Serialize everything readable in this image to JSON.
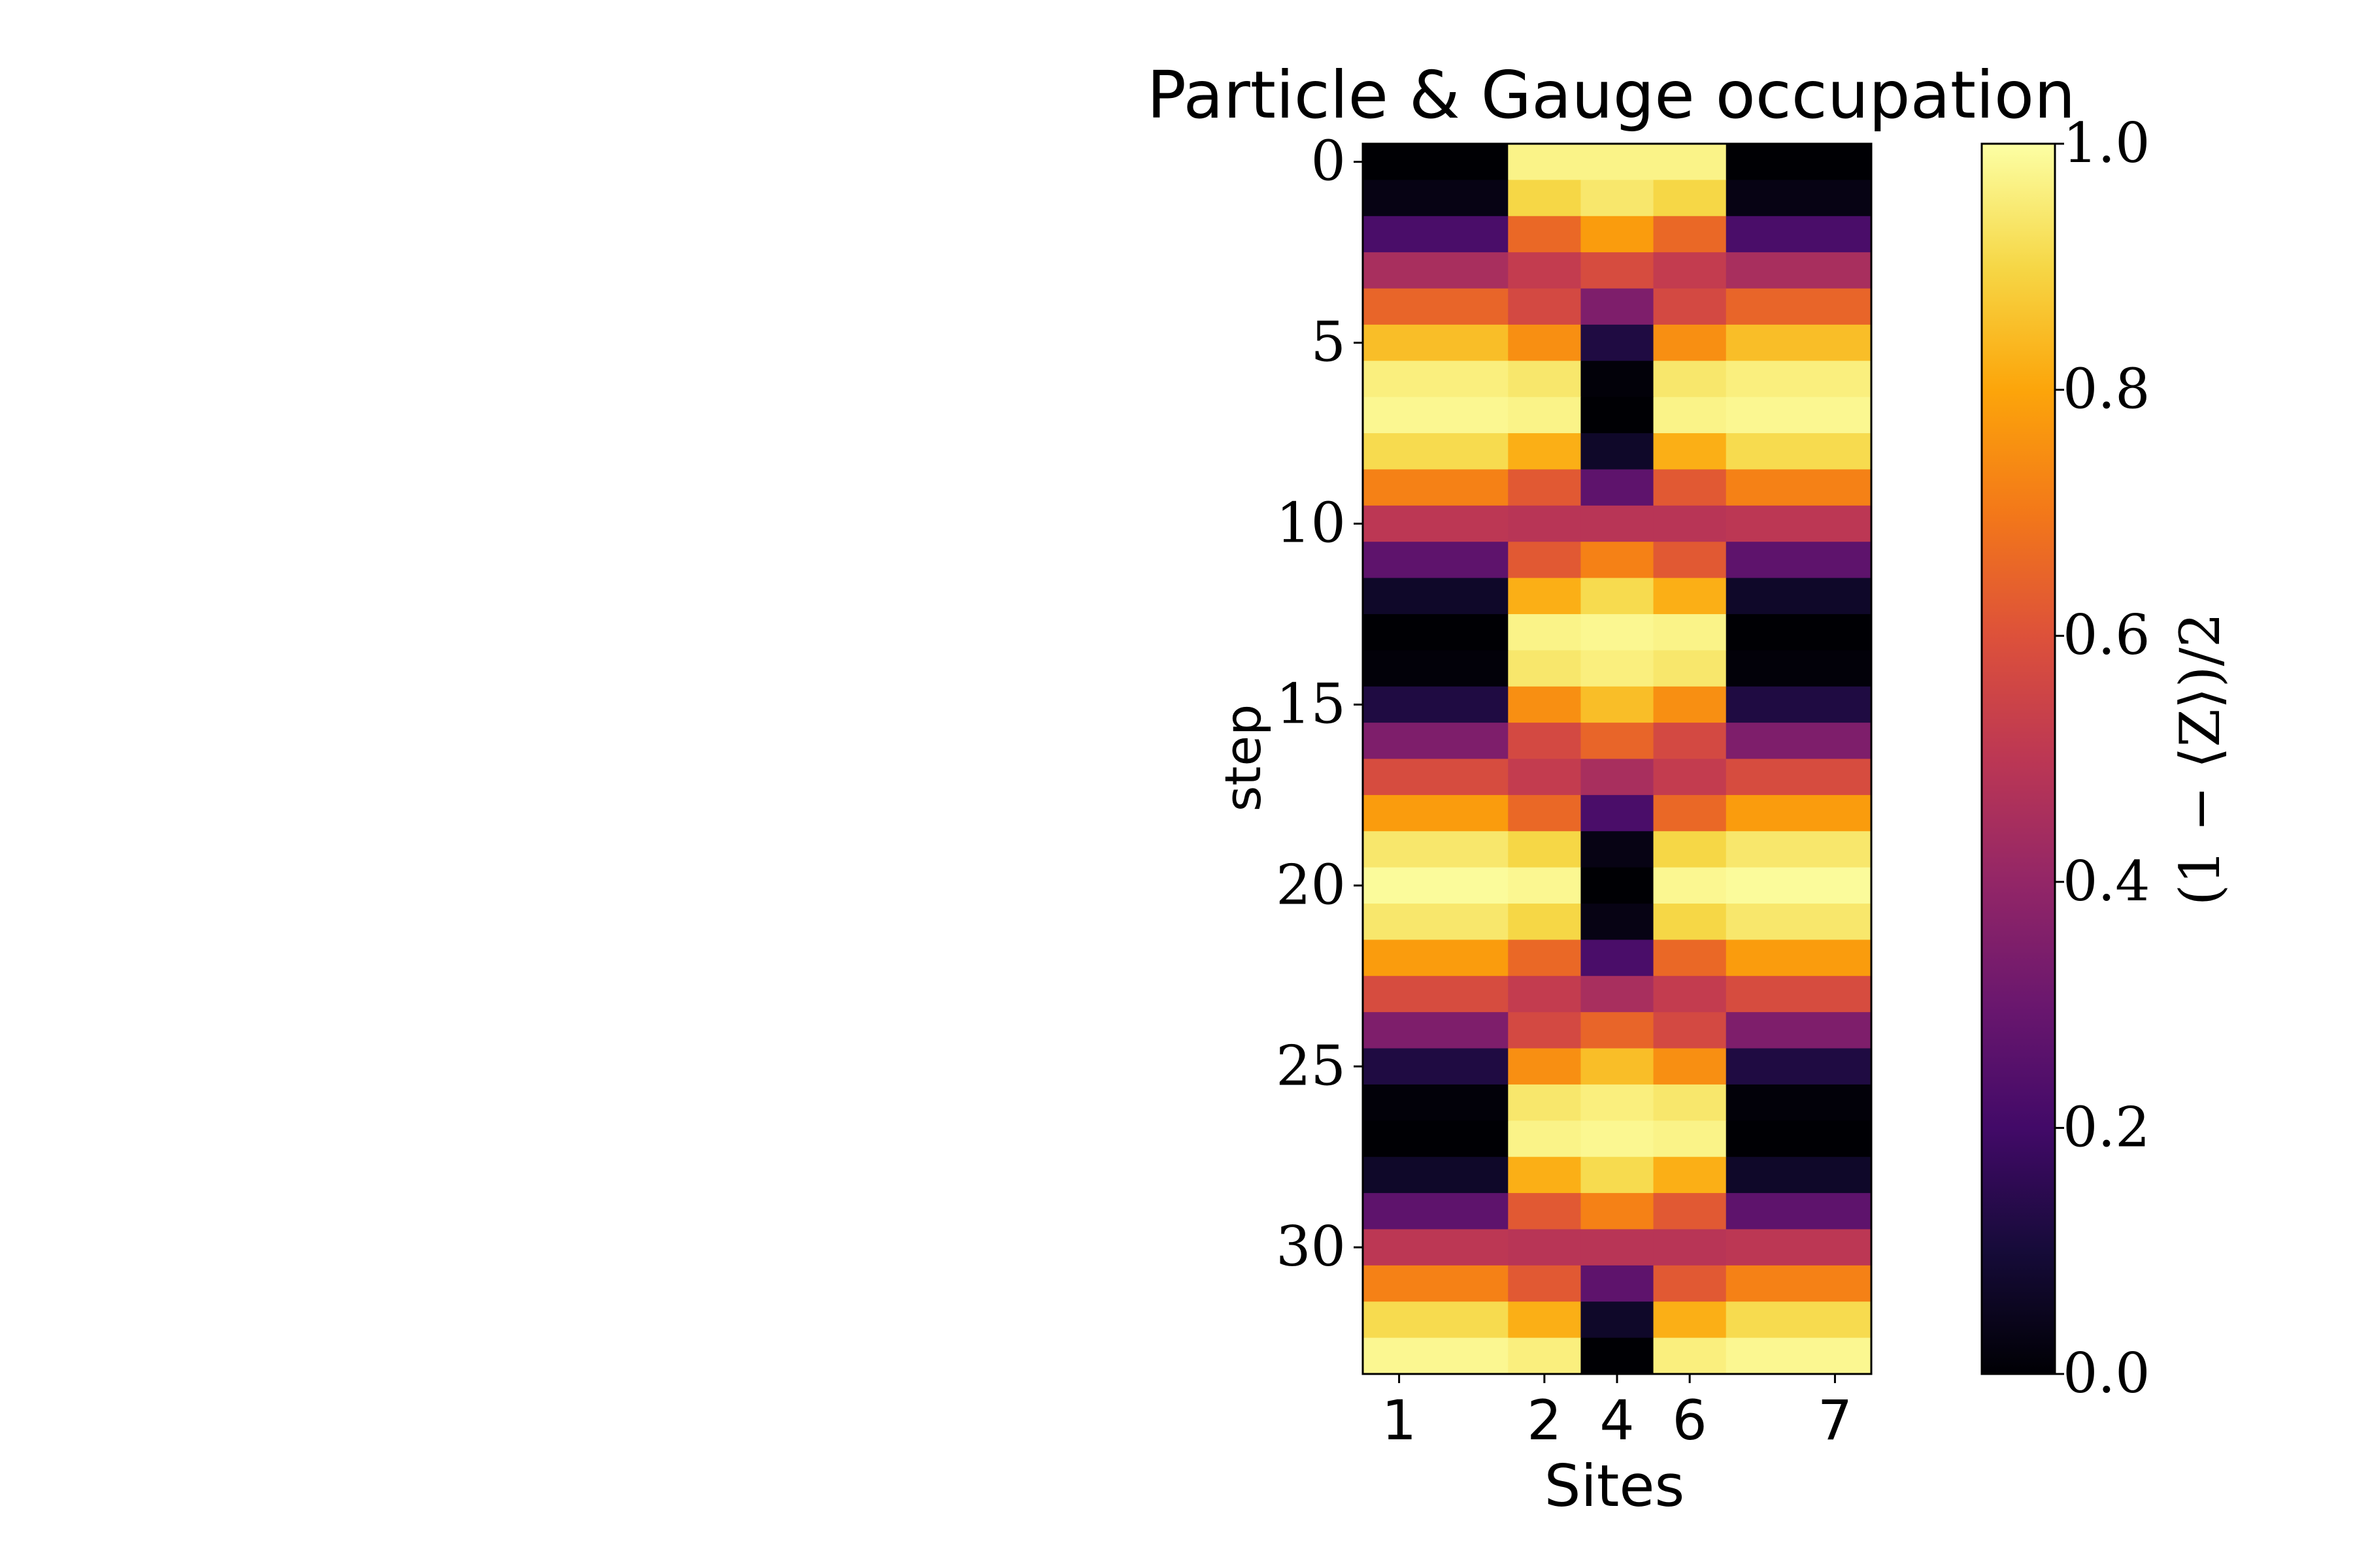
{
  "chart_data": {
    "type": "heatmap",
    "title": "Particle & Gauge occupation",
    "xlabel": "Sites",
    "ylabel": "step",
    "colorbar_label": "(1 − ⟨Z⟩)/2",
    "colormap": "inferno",
    "grid": false,
    "columns": [
      {
        "label": "1",
        "span": 2
      },
      {
        "label": "2",
        "span": 1
      },
      {
        "label": "4",
        "span": 1
      },
      {
        "label": "6",
        "span": 1
      },
      {
        "label": "7",
        "span": 2
      }
    ],
    "x_ticks": [
      "1",
      "2",
      "4",
      "6",
      "7"
    ],
    "y_ticks": [
      {
        "value": 0,
        "label": "0"
      },
      {
        "value": 5,
        "label": "5"
      },
      {
        "value": 10,
        "label": "10"
      },
      {
        "value": 15,
        "label": "15"
      },
      {
        "value": 20,
        "label": "20"
      },
      {
        "value": 25,
        "label": "25"
      },
      {
        "value": 30,
        "label": "30"
      }
    ],
    "steps": 34,
    "colorbar_ticks": [
      {
        "value": 0.0,
        "label": "0.0"
      },
      {
        "value": 0.2,
        "label": "0.2"
      },
      {
        "value": 0.4,
        "label": "0.4"
      },
      {
        "value": 0.6,
        "label": "0.6"
      },
      {
        "value": 0.8,
        "label": "0.8"
      },
      {
        "value": 1.0,
        "label": "1.0"
      }
    ],
    "vmin": 0.0,
    "vmax": 1.0,
    "values": [
      [
        0.0,
        0.97,
        0.97,
        0.97,
        0.0
      ],
      [
        0.03,
        0.9,
        0.94,
        0.9,
        0.03
      ],
      [
        0.22,
        0.66,
        0.78,
        0.66,
        0.22
      ],
      [
        0.45,
        0.52,
        0.58,
        0.52,
        0.45
      ],
      [
        0.65,
        0.57,
        0.35,
        0.57,
        0.65
      ],
      [
        0.85,
        0.75,
        0.12,
        0.75,
        0.85
      ],
      [
        0.96,
        0.94,
        0.01,
        0.94,
        0.96
      ],
      [
        0.98,
        0.97,
        0.0,
        0.97,
        0.98
      ],
      [
        0.91,
        0.82,
        0.07,
        0.82,
        0.91
      ],
      [
        0.72,
        0.62,
        0.27,
        0.62,
        0.72
      ],
      [
        0.5,
        0.49,
        0.49,
        0.49,
        0.5
      ],
      [
        0.27,
        0.62,
        0.72,
        0.62,
        0.27
      ],
      [
        0.07,
        0.82,
        0.91,
        0.82,
        0.07
      ],
      [
        0.0,
        0.97,
        0.98,
        0.97,
        0.0
      ],
      [
        0.01,
        0.94,
        0.96,
        0.94,
        0.01
      ],
      [
        0.12,
        0.75,
        0.85,
        0.75,
        0.12
      ],
      [
        0.35,
        0.57,
        0.65,
        0.57,
        0.35
      ],
      [
        0.58,
        0.52,
        0.45,
        0.52,
        0.58
      ],
      [
        0.78,
        0.66,
        0.22,
        0.66,
        0.78
      ],
      [
        0.94,
        0.9,
        0.03,
        0.9,
        0.94
      ],
      [
        0.99,
        0.98,
        0.0,
        0.98,
        0.99
      ],
      [
        0.94,
        0.9,
        0.03,
        0.9,
        0.94
      ],
      [
        0.78,
        0.66,
        0.22,
        0.66,
        0.78
      ],
      [
        0.58,
        0.52,
        0.45,
        0.52,
        0.58
      ],
      [
        0.35,
        0.57,
        0.65,
        0.57,
        0.35
      ],
      [
        0.12,
        0.75,
        0.85,
        0.75,
        0.12
      ],
      [
        0.01,
        0.94,
        0.96,
        0.94,
        0.01
      ],
      [
        0.0,
        0.97,
        0.98,
        0.97,
        0.0
      ],
      [
        0.07,
        0.82,
        0.91,
        0.82,
        0.07
      ],
      [
        0.27,
        0.62,
        0.72,
        0.62,
        0.27
      ],
      [
        0.5,
        0.49,
        0.49,
        0.49,
        0.5
      ],
      [
        0.72,
        0.62,
        0.27,
        0.62,
        0.72
      ],
      [
        0.91,
        0.82,
        0.07,
        0.82,
        0.91
      ],
      [
        0.98,
        0.96,
        0.0,
        0.96,
        0.98
      ]
    ]
  }
}
